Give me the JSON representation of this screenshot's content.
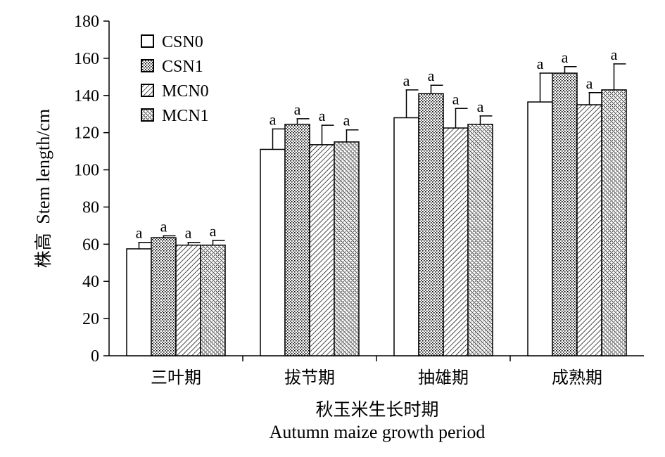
{
  "chart_data": {
    "type": "bar",
    "title": "",
    "categories": [
      "三叶期",
      "拔节期",
      "抽雄期",
      "成熟期"
    ],
    "series": [
      {
        "name": "CSN0",
        "pattern": "white",
        "values": [
          57.5,
          111,
          128,
          136.5
        ],
        "errors": [
          3.5,
          11,
          15,
          15.5
        ],
        "labels": [
          "a",
          "a",
          "a",
          "a"
        ]
      },
      {
        "name": "CSN1",
        "pattern": "dots",
        "values": [
          63.5,
          124.5,
          141,
          152
        ],
        "errors": [
          1,
          3,
          4.5,
          3.5
        ],
        "labels": [
          "a",
          "a",
          "a",
          "a"
        ]
      },
      {
        "name": "MCN0",
        "pattern": "hatch-fine",
        "values": [
          59.5,
          113.5,
          122.5,
          135
        ],
        "errors": [
          1.5,
          10.5,
          10.5,
          6.5
        ],
        "labels": [
          "a",
          "a",
          "a",
          "a"
        ]
      },
      {
        "name": "MCN1",
        "pattern": "hatch-dense",
        "values": [
          59.5,
          115,
          124.5,
          143
        ],
        "errors": [
          2.5,
          6.5,
          4.5,
          14
        ],
        "labels": [
          "a",
          "a",
          "a",
          "a"
        ]
      }
    ],
    "ylabel_cn": "株高",
    "ylabel": "Stem length/cm",
    "xlabel_cn": "秋玉米生长时期",
    "xlabel": "Autumn maize growth period",
    "ylim": [
      0,
      180
    ],
    "yticks": [
      0,
      20,
      40,
      60,
      80,
      100,
      120,
      140,
      160,
      180
    ],
    "grid": false,
    "legend_position": "top-left"
  }
}
